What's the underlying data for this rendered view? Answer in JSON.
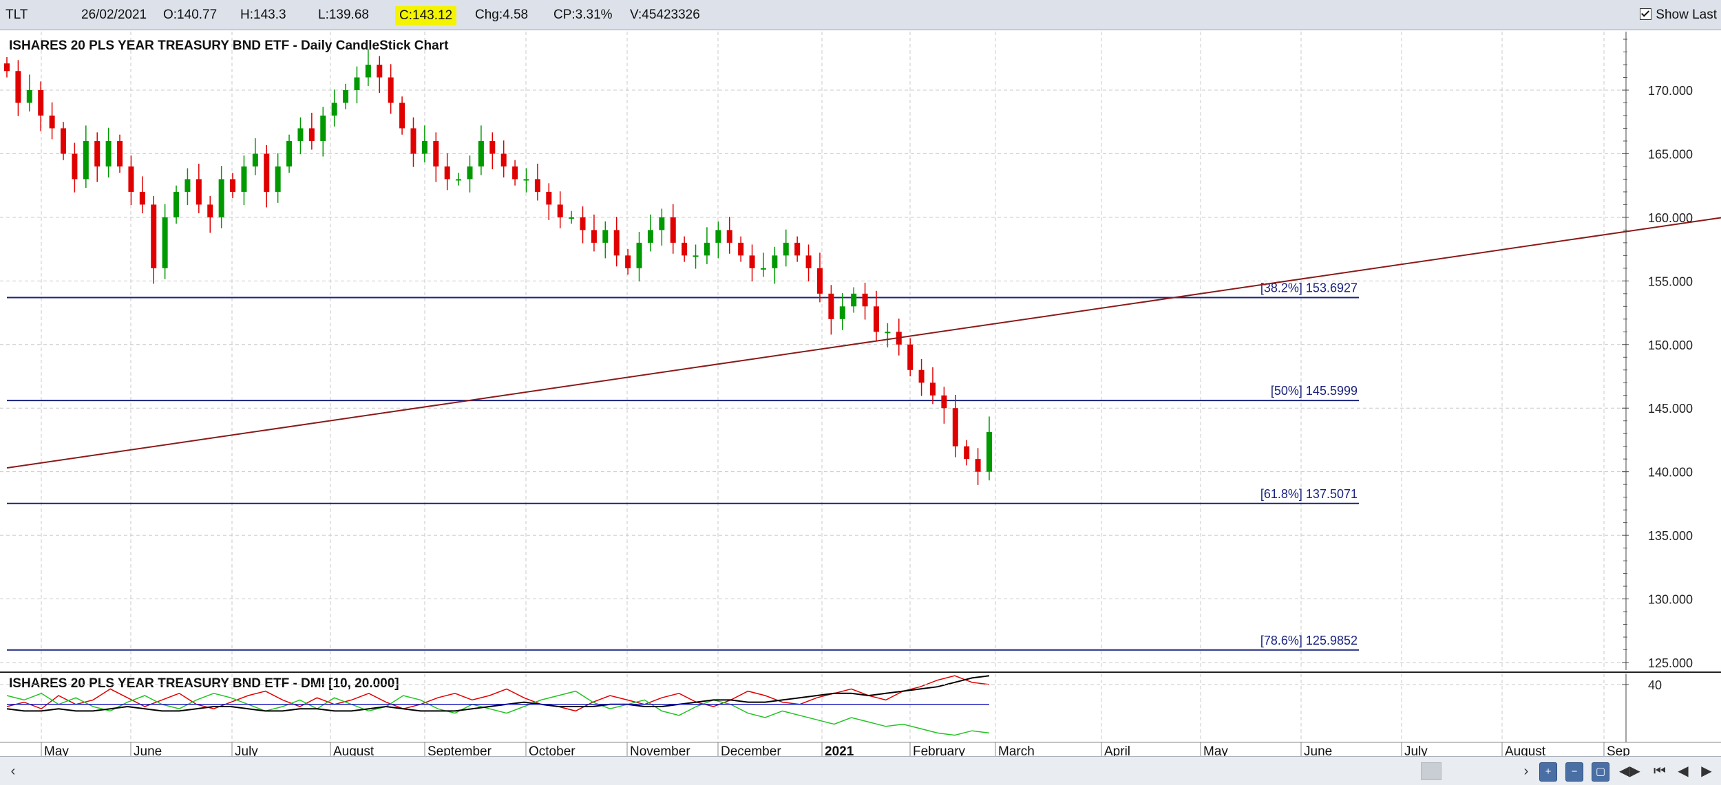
{
  "header": {
    "symbol": "TLT",
    "date": "26/02/2021",
    "open": "O:140.77",
    "high": "H:143.3",
    "low": "L:139.68",
    "close": "C:143.12",
    "change": "Chg:4.58",
    "change_pct": "CP:3.31%",
    "volume": "V:45423326",
    "show_last_label": "Show Last",
    "show_last_checked": true
  },
  "chart_data": [
    {
      "type": "candlestick",
      "title": "ISHARES 20 PLS YEAR TREASURY BND ETF - Daily CandleStick Chart",
      "x_period": "2020-04-23 to 2021-02-26",
      "ylim": [
        125,
        172
      ],
      "y_ticks": [
        "125.000",
        "130.000",
        "135.000",
        "140.000",
        "145.000",
        "150.000",
        "155.000",
        "160.000",
        "165.000",
        "170.000"
      ],
      "grid": true,
      "up_color": "#009a00",
      "down_color": "#e00000",
      "closes": [
        171.5,
        169,
        170,
        168,
        167,
        165,
        163,
        166,
        164,
        166,
        164,
        162,
        161,
        156,
        160,
        162,
        163,
        161,
        160,
        163,
        162,
        164,
        165,
        162,
        164,
        166,
        167,
        166,
        168,
        169,
        170,
        171,
        172,
        171,
        169,
        167,
        165,
        166,
        164,
        163,
        163,
        164,
        166,
        165,
        164,
        163,
        163,
        162,
        161,
        160,
        160,
        159,
        158,
        159,
        157,
        156,
        158,
        159,
        160,
        158,
        157,
        157,
        158,
        159,
        158,
        157,
        156,
        156,
        157,
        158,
        157,
        156,
        154,
        152,
        153,
        154,
        153,
        151,
        151,
        150,
        148,
        147,
        146,
        145,
        142,
        141,
        140,
        143.12
      ],
      "fib_levels": [
        {
          "label": "[38.2%] 153.6927",
          "value": 153.6927
        },
        {
          "label": "[50%] 145.5999",
          "value": 145.5999
        },
        {
          "label": "[61.8%] 137.5071",
          "value": 137.5071
        },
        {
          "label": "[78.6%] 125.9852",
          "value": 125.9852
        }
      ],
      "trendline": {
        "from": {
          "index": 0,
          "value": 140.3
        },
        "to": {
          "index": 213,
          "value": 167.9
        },
        "color": "#8b1a1a"
      }
    },
    {
      "type": "line",
      "title": "ISHARES 20 PLS YEAR TREASURY BND ETF - DMI [10, 20.000]",
      "y_ticks": [
        "40"
      ],
      "series": [
        {
          "color": "#e00000",
          "values": [
            30,
            32,
            29,
            35,
            31,
            33,
            38,
            34,
            30,
            33,
            36,
            31,
            29,
            32,
            35,
            37,
            33,
            30,
            34,
            31,
            33,
            36,
            32,
            29,
            31,
            34,
            36,
            33,
            35,
            38,
            34,
            31,
            30,
            28,
            32,
            35,
            33,
            31,
            34,
            36,
            32,
            30,
            33,
            37,
            35,
            32,
            31,
            34,
            36,
            38,
            35,
            33,
            37,
            39,
            42,
            44,
            41,
            40
          ]
        },
        {
          "color": "#22c422",
          "values": [
            35,
            33,
            36,
            31,
            34,
            30,
            28,
            32,
            35,
            31,
            29,
            33,
            36,
            34,
            31,
            28,
            30,
            33,
            29,
            34,
            31,
            28,
            30,
            35,
            33,
            29,
            27,
            31,
            29,
            27,
            30,
            33,
            35,
            37,
            32,
            29,
            31,
            33,
            28,
            26,
            30,
            33,
            31,
            27,
            25,
            28,
            26,
            24,
            22,
            25,
            23,
            21,
            22,
            20,
            18,
            17,
            19,
            18
          ]
        },
        {
          "color": "#000000",
          "values": [
            29,
            28,
            28,
            29,
            28,
            28,
            29,
            30,
            29,
            28,
            28,
            29,
            30,
            30,
            29,
            28,
            28,
            29,
            29,
            28,
            28,
            29,
            30,
            29,
            28,
            28,
            28,
            29,
            30,
            31,
            32,
            31,
            30,
            30,
            30,
            31,
            31,
            30,
            30,
            31,
            32,
            33,
            33,
            32,
            32,
            33,
            34,
            35,
            36,
            36,
            35,
            36,
            37,
            38,
            39,
            41,
            43,
            44
          ]
        },
        {
          "color": "#1f1fbf",
          "values": [
            31,
            31,
            31,
            31,
            31,
            31,
            31,
            31,
            31,
            31,
            31,
            31,
            31,
            31,
            31,
            31,
            31,
            31,
            31,
            31,
            31,
            31,
            31,
            31,
            31,
            31,
            31,
            31,
            31,
            31,
            31,
            31,
            31,
            31,
            31,
            31,
            31,
            31,
            31,
            31,
            31,
            31,
            31,
            31,
            31,
            31,
            31,
            31,
            31,
            31,
            31,
            31,
            31,
            31,
            31,
            31,
            31,
            31
          ]
        }
      ]
    }
  ],
  "x_axis": {
    "labels": [
      "May",
      "June",
      "July",
      "August",
      "September",
      "October",
      "November",
      "December",
      "2021",
      "February",
      "March",
      "April",
      "May",
      "June",
      "July",
      "August",
      "Sep"
    ]
  }
}
